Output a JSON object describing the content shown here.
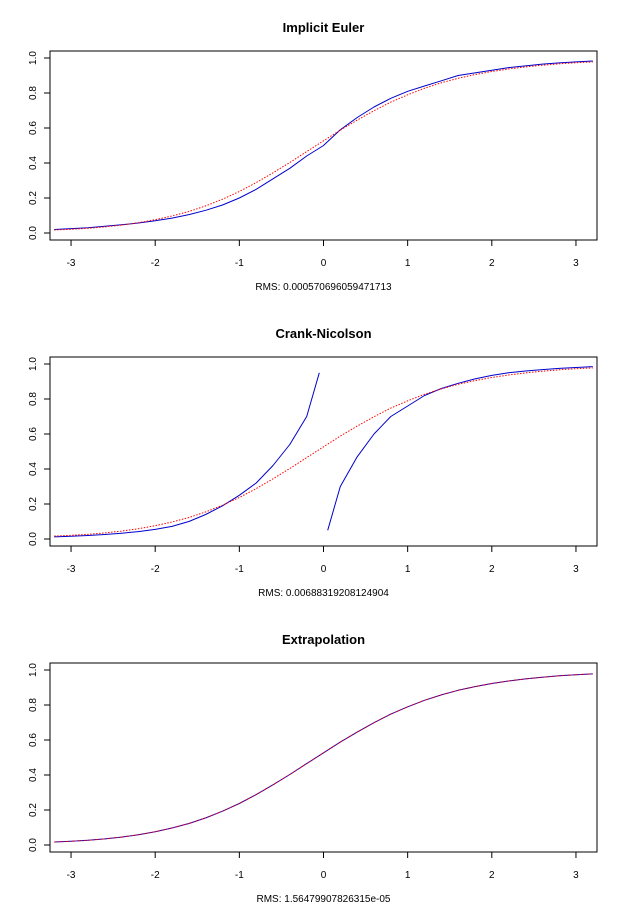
{
  "chart_data": [
    {
      "type": "line",
      "title": "Implicit Euler",
      "xlabel": "RMS:  0.000570696059471713",
      "ylabel": "",
      "xlim": [
        -3.25,
        3.25
      ],
      "ylim": [
        -0.04,
        1.04
      ],
      "xticks": [
        -3,
        -2,
        -1,
        0,
        1,
        2,
        3
      ],
      "yticks": [
        0.0,
        0.2,
        0.4,
        0.6,
        0.8,
        1.0
      ],
      "grid": false,
      "series": [
        {
          "color": "#0000cc",
          "dash": "solid",
          "x": [
            -3.2,
            -3.0,
            -2.8,
            -2.6,
            -2.4,
            -2.2,
            -2.0,
            -1.8,
            -1.6,
            -1.4,
            -1.2,
            -1.0,
            -0.8,
            -0.6,
            -0.4,
            -0.2,
            0.0,
            0.2,
            0.4,
            0.6,
            0.8,
            1.0,
            1.2,
            1.4,
            1.6,
            1.8,
            2.0,
            2.2,
            2.4,
            2.6,
            2.8,
            3.0,
            3.2
          ],
          "y": [
            0.02,
            0.025,
            0.03,
            0.038,
            0.047,
            0.057,
            0.07,
            0.085,
            0.105,
            0.13,
            0.16,
            0.2,
            0.25,
            0.31,
            0.37,
            0.44,
            0.5,
            0.59,
            0.66,
            0.72,
            0.77,
            0.81,
            0.84,
            0.87,
            0.9,
            0.915,
            0.93,
            0.945,
            0.955,
            0.965,
            0.972,
            0.978,
            0.983
          ]
        },
        {
          "color": "#ff0000",
          "dash": "dotted",
          "x": [
            -3.2,
            -3.0,
            -2.8,
            -2.6,
            -2.4,
            -2.2,
            -2.0,
            -1.8,
            -1.6,
            -1.4,
            -1.2,
            -1.0,
            -0.8,
            -0.6,
            -0.4,
            -0.2,
            0.0,
            0.2,
            0.4,
            0.6,
            0.8,
            1.0,
            1.2,
            1.4,
            1.6,
            1.8,
            2.0,
            2.2,
            2.4,
            2.6,
            2.8,
            3.0,
            3.2
          ],
          "y": [
            0.017,
            0.021,
            0.027,
            0.035,
            0.045,
            0.059,
            0.076,
            0.097,
            0.123,
            0.155,
            0.193,
            0.237,
            0.288,
            0.344,
            0.403,
            0.465,
            0.527,
            0.588,
            0.645,
            0.699,
            0.748,
            0.79,
            0.827,
            0.858,
            0.884,
            0.905,
            0.923,
            0.937,
            0.949,
            0.959,
            0.967,
            0.973,
            0.978
          ]
        }
      ]
    },
    {
      "type": "line",
      "title": "Crank-Nicolson",
      "xlabel": "RMS:  0.00688319208124904",
      "ylabel": "",
      "xlim": [
        -3.25,
        3.25
      ],
      "ylim": [
        -0.04,
        1.04
      ],
      "xticks": [
        -3,
        -2,
        -1,
        0,
        1,
        2,
        3
      ],
      "yticks": [
        0.0,
        0.2,
        0.4,
        0.6,
        0.8,
        1.0
      ],
      "grid": false,
      "series": [
        {
          "color": "#0000cc",
          "dash": "solid",
          "x": [
            -3.2,
            -3.0,
            -2.8,
            -2.6,
            -2.4,
            -2.2,
            -2.0,
            -1.8,
            -1.6,
            -1.4,
            -1.2,
            -1.0,
            -0.8,
            -0.6,
            -0.4,
            -0.2,
            -0.05
          ],
          "y": [
            0.012,
            0.016,
            0.02,
            0.026,
            0.033,
            0.042,
            0.055,
            0.072,
            0.1,
            0.14,
            0.19,
            0.25,
            0.32,
            0.42,
            0.54,
            0.7,
            0.95
          ]
        },
        {
          "color": "#0000cc",
          "dash": "solid",
          "x": [
            0.05,
            0.2,
            0.4,
            0.6,
            0.8,
            1.0,
            1.2,
            1.4,
            1.6,
            1.8,
            2.0,
            2.2,
            2.4,
            2.6,
            2.8,
            3.0,
            3.2
          ],
          "y": [
            0.05,
            0.3,
            0.47,
            0.6,
            0.7,
            0.76,
            0.82,
            0.86,
            0.89,
            0.915,
            0.935,
            0.95,
            0.96,
            0.968,
            0.975,
            0.98,
            0.985
          ]
        },
        {
          "color": "#ff0000",
          "dash": "dotted",
          "x": [
            -3.2,
            -3.0,
            -2.8,
            -2.6,
            -2.4,
            -2.2,
            -2.0,
            -1.8,
            -1.6,
            -1.4,
            -1.2,
            -1.0,
            -0.8,
            -0.6,
            -0.4,
            -0.2,
            0.0,
            0.2,
            0.4,
            0.6,
            0.8,
            1.0,
            1.2,
            1.4,
            1.6,
            1.8,
            2.0,
            2.2,
            2.4,
            2.6,
            2.8,
            3.0,
            3.2
          ],
          "y": [
            0.017,
            0.021,
            0.027,
            0.035,
            0.045,
            0.059,
            0.076,
            0.097,
            0.123,
            0.155,
            0.193,
            0.237,
            0.288,
            0.344,
            0.403,
            0.465,
            0.527,
            0.588,
            0.645,
            0.699,
            0.748,
            0.79,
            0.827,
            0.858,
            0.884,
            0.905,
            0.923,
            0.937,
            0.949,
            0.959,
            0.967,
            0.973,
            0.978
          ]
        }
      ]
    },
    {
      "type": "line",
      "title": "Extrapolation",
      "xlabel": "RMS:  1.56479907826315e-05",
      "ylabel": "",
      "xlim": [
        -3.25,
        3.25
      ],
      "ylim": [
        -0.04,
        1.04
      ],
      "xticks": [
        -3,
        -2,
        -1,
        0,
        1,
        2,
        3
      ],
      "yticks": [
        0.0,
        0.2,
        0.4,
        0.6,
        0.8,
        1.0
      ],
      "grid": false,
      "series": [
        {
          "color": "#0000cc",
          "dash": "solid",
          "x": [
            -3.2,
            -3.0,
            -2.8,
            -2.6,
            -2.4,
            -2.2,
            -2.0,
            -1.8,
            -1.6,
            -1.4,
            -1.2,
            -1.0,
            -0.8,
            -0.6,
            -0.4,
            -0.2,
            0.0,
            0.2,
            0.4,
            0.6,
            0.8,
            1.0,
            1.2,
            1.4,
            1.6,
            1.8,
            2.0,
            2.2,
            2.4,
            2.6,
            2.8,
            3.0,
            3.2
          ],
          "y": [
            0.017,
            0.021,
            0.027,
            0.035,
            0.045,
            0.059,
            0.076,
            0.097,
            0.123,
            0.155,
            0.193,
            0.237,
            0.288,
            0.344,
            0.403,
            0.465,
            0.527,
            0.588,
            0.645,
            0.699,
            0.748,
            0.79,
            0.827,
            0.858,
            0.884,
            0.905,
            0.923,
            0.937,
            0.949,
            0.959,
            0.967,
            0.973,
            0.978
          ]
        },
        {
          "color": "#ff0000",
          "dash": "dotted",
          "x": [
            -3.2,
            -3.0,
            -2.8,
            -2.6,
            -2.4,
            -2.2,
            -2.0,
            -1.8,
            -1.6,
            -1.4,
            -1.2,
            -1.0,
            -0.8,
            -0.6,
            -0.4,
            -0.2,
            0.0,
            0.2,
            0.4,
            0.6,
            0.8,
            1.0,
            1.2,
            1.4,
            1.6,
            1.8,
            2.0,
            2.2,
            2.4,
            2.6,
            2.8,
            3.0,
            3.2
          ],
          "y": [
            0.017,
            0.021,
            0.027,
            0.035,
            0.045,
            0.059,
            0.076,
            0.097,
            0.123,
            0.155,
            0.193,
            0.237,
            0.288,
            0.344,
            0.403,
            0.465,
            0.527,
            0.588,
            0.645,
            0.699,
            0.748,
            0.79,
            0.827,
            0.858,
            0.884,
            0.905,
            0.923,
            0.937,
            0.949,
            0.959,
            0.967,
            0.973,
            0.978
          ]
        }
      ]
    }
  ]
}
